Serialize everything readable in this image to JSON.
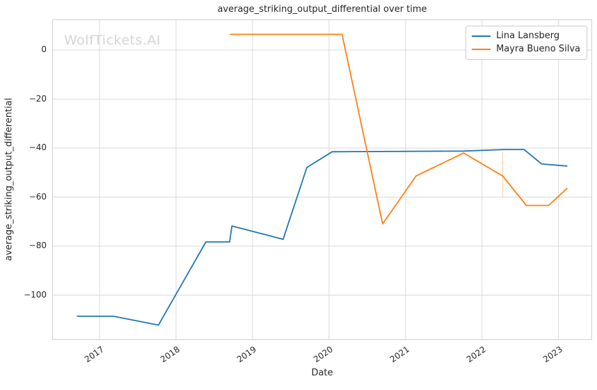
{
  "watermark": {
    "text": "WolfTickets.AI"
  },
  "chart_data": {
    "type": "line",
    "title": "average_striking_output_differential over time",
    "xlabel": "Date",
    "ylabel": "average_striking_output_differential",
    "x_unit": "year",
    "x_domain": [
      2016.39,
      2023.43
    ],
    "y_domain": [
      -118.0,
      12.2
    ],
    "x_ticks": [
      2017,
      2018,
      2019,
      2020,
      2021,
      2022,
      2023
    ],
    "y_ticks": [
      0,
      -20,
      -40,
      -60,
      -80,
      -100
    ],
    "grid": true,
    "legend_position": "upper right",
    "colors": {
      "grid": "#d9d9d9",
      "spine": "#cfcfcf",
      "text": "#262626",
      "watermark": "#d4d4d4"
    },
    "series": [
      {
        "name": "Lina Lansberg",
        "color": "#1f77b4",
        "points": [
          [
            2016.71,
            -108.6
          ],
          [
            2017.18,
            -108.6
          ],
          [
            2017.77,
            -112.2
          ],
          [
            2018.39,
            -78.3
          ],
          [
            2018.7,
            -78.3
          ],
          [
            2018.73,
            -71.8
          ],
          [
            2019.4,
            -77.2
          ],
          [
            2019.71,
            -47.9
          ],
          [
            2020.04,
            -41.5
          ],
          [
            2021.76,
            -41.2
          ],
          [
            2022.28,
            -40.6
          ],
          [
            2022.55,
            -40.6
          ],
          [
            2022.78,
            -46.5
          ],
          [
            2023.11,
            -47.3
          ]
        ]
      },
      {
        "name": "Mayra Bueno Silva",
        "color": "#ff7f0e",
        "points": [
          [
            2018.71,
            6.4
          ],
          [
            2020.17,
            6.4
          ],
          [
            2020.7,
            -70.9
          ],
          [
            2021.14,
            -51.3
          ],
          [
            2021.76,
            -42.0
          ],
          [
            2022.27,
            -51.4
          ],
          [
            2022.58,
            -63.4
          ],
          [
            2022.87,
            -63.4
          ],
          [
            2023.11,
            -56.5
          ]
        ]
      }
    ],
    "annotations": [
      {
        "type": "vline_segment",
        "x": 2022.27,
        "y1": -41.5,
        "y2": -60.0,
        "color": "#ff7f0e",
        "opacity": 0.3
      }
    ]
  }
}
